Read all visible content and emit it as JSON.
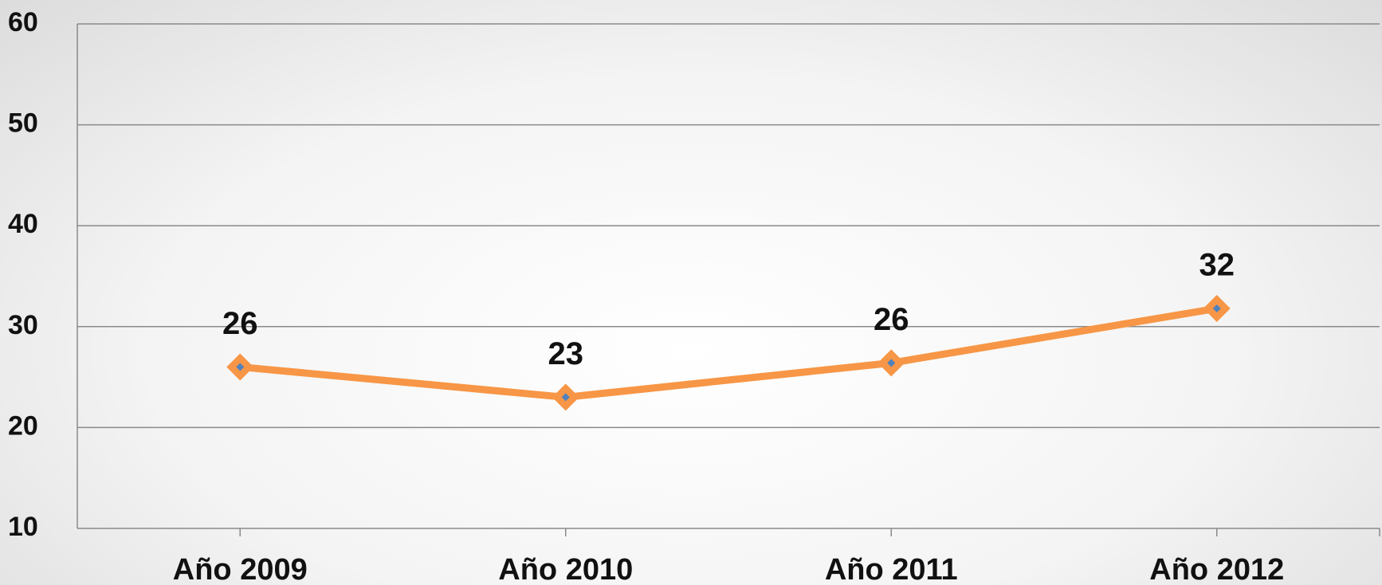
{
  "chart_data": {
    "type": "line",
    "categories": [
      "Año 2009",
      "Año 2010",
      "Año 2011",
      "Año 2012"
    ],
    "series": [
      {
        "color": "#f79646",
        "values": [
          26,
          23,
          26.4,
          31.8
        ],
        "value_labels": [
          "26",
          "23",
          "26",
          "32"
        ]
      }
    ],
    "ylim": [
      10,
      60
    ],
    "yticks": [
      10,
      20,
      30,
      40,
      50,
      60
    ],
    "grid": true
  }
}
